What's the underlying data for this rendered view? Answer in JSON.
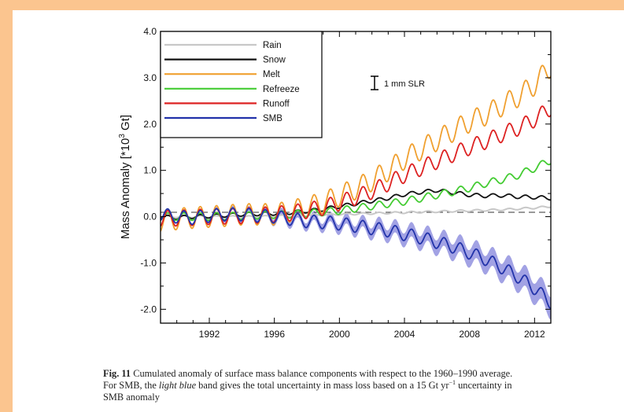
{
  "chart_data": {
    "type": "line",
    "ylabel": "Mass Anomaly [*10",
    "ylabel_exp": "3",
    "ylabel_unit": " Gt]",
    "xlim": [
      1989,
      2013
    ],
    "ylim": [
      -2.3,
      4.0
    ],
    "x_ticks": [
      1992,
      1996,
      2000,
      2004,
      2008,
      2012
    ],
    "x_tick_labels": [
      "1992",
      "1996",
      "2000",
      "2004",
      "2008",
      "2012"
    ],
    "y_ticks": [
      4.0,
      3.0,
      2.0,
      1.0,
      0.0,
      -1.0,
      -2.0
    ],
    "y_tick_labels": [
      "4.0",
      "3.0",
      "2.0",
      "1.0",
      "0.0",
      "-1.0",
      "-2.0"
    ],
    "legend_position": "top-left",
    "zero_line": "dashed",
    "scale_bar": {
      "label": "1 mm SLR",
      "value": 0.36
    },
    "x": [
      1989,
      1990,
      1991,
      1992,
      1993,
      1994,
      1995,
      1996,
      1997,
      1998,
      1999,
      2000,
      2001,
      2002,
      2003,
      2004,
      2005,
      2006,
      2007,
      2008,
      2009,
      2010,
      2011,
      2012,
      2013
    ],
    "series": [
      {
        "name": "Rain",
        "color": "#c8c8c8",
        "seasonal_amplitude": 0.02,
        "values": [
          0.0,
          0.0,
          0.0,
          0.0,
          0.0,
          0.0,
          0.0,
          0.01,
          0.02,
          0.03,
          0.04,
          0.05,
          0.06,
          0.07,
          0.08,
          0.09,
          0.1,
          0.11,
          0.12,
          0.13,
          0.14,
          0.15,
          0.17,
          0.19,
          0.22
        ]
      },
      {
        "name": "Snow",
        "color": "#111111",
        "seasonal_amplitude": 0.04,
        "values": [
          0.0,
          -0.02,
          0.0,
          0.01,
          0.03,
          0.05,
          0.06,
          0.07,
          0.09,
          0.12,
          0.16,
          0.22,
          0.28,
          0.34,
          0.4,
          0.48,
          0.53,
          0.57,
          0.52,
          0.47,
          0.45,
          0.46,
          0.43,
          0.42,
          0.4
        ]
      },
      {
        "name": "Melt",
        "color": "#f0a030",
        "seasonal_amplitude": 0.23,
        "values": [
          -0.1,
          -0.05,
          -0.02,
          0.0,
          0.02,
          0.05,
          0.05,
          0.05,
          0.12,
          0.2,
          0.3,
          0.45,
          0.6,
          0.78,
          1.0,
          1.25,
          1.45,
          1.65,
          1.85,
          2.05,
          2.2,
          2.4,
          2.6,
          2.85,
          3.25
        ]
      },
      {
        "name": "Refreeze",
        "color": "#44cc33",
        "seasonal_amplitude": 0.08,
        "values": [
          0.0,
          0.0,
          0.0,
          0.0,
          0.01,
          0.02,
          0.03,
          0.04,
          0.05,
          0.07,
          0.1,
          0.13,
          0.18,
          0.23,
          0.28,
          0.33,
          0.4,
          0.47,
          0.54,
          0.62,
          0.72,
          0.8,
          0.9,
          1.05,
          1.22
        ]
      },
      {
        "name": "Runoff",
        "color": "#dd2222",
        "seasonal_amplitude": 0.17,
        "values": [
          -0.05,
          -0.03,
          -0.02,
          0.0,
          0.01,
          0.02,
          0.03,
          0.05,
          0.08,
          0.13,
          0.2,
          0.3,
          0.42,
          0.55,
          0.72,
          0.9,
          1.05,
          1.2,
          1.35,
          1.5,
          1.63,
          1.78,
          1.92,
          2.1,
          2.35
        ]
      },
      {
        "name": "SMB",
        "color": "#2233aa",
        "seasonal_amplitude": 0.14,
        "band_color": "#7a7ad8",
        "band_halfwidth": [
          0.0,
          0.0,
          0.02,
          0.03,
          0.04,
          0.05,
          0.06,
          0.07,
          0.08,
          0.09,
          0.1,
          0.11,
          0.12,
          0.13,
          0.14,
          0.15,
          0.16,
          0.17,
          0.18,
          0.19,
          0.2,
          0.21,
          0.22,
          0.23,
          0.24
        ],
        "values": [
          0.05,
          0.0,
          -0.03,
          0.02,
          0.05,
          0.05,
          0.02,
          0.0,
          -0.05,
          -0.1,
          -0.12,
          -0.15,
          -0.2,
          -0.25,
          -0.3,
          -0.38,
          -0.45,
          -0.55,
          -0.65,
          -0.78,
          -0.92,
          -1.1,
          -1.3,
          -1.55,
          -1.85
        ]
      }
    ]
  },
  "caption": {
    "label": "Fig. 11",
    "line1": "  Cumulated anomaly of surface mass balance components with respect to the 1960–1990 average.",
    "line2_a": "For SMB, the ",
    "line2_italic": "light blue",
    "line2_b": " band gives the total uncertainty in mass loss based on a 15 Gt yr",
    "line2_sup": "−1",
    "line2_c": " uncertainty in",
    "line3": "SMB anomaly"
  }
}
